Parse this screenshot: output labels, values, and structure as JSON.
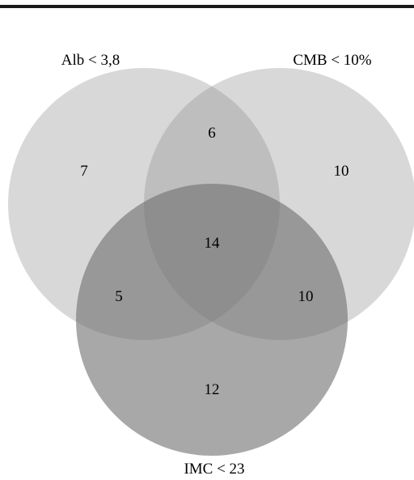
{
  "venn": {
    "sets": [
      {
        "key": "alb",
        "label": "Alb < 3,8"
      },
      {
        "key": "cmb",
        "label": "CMB < 10%"
      },
      {
        "key": "imc",
        "label": "IMC < 23"
      }
    ],
    "regions": {
      "alb_only": "7",
      "cmb_only": "10",
      "imc_only": "12",
      "alb_cmb": "6",
      "alb_imc": "5",
      "cmb_imc": "10",
      "all_three": "14"
    },
    "colors": {
      "top_rule": "#1a1a1a",
      "circle_fill": "#8f8f8f",
      "circle_fill_imc": "#6e6e6e"
    }
  }
}
